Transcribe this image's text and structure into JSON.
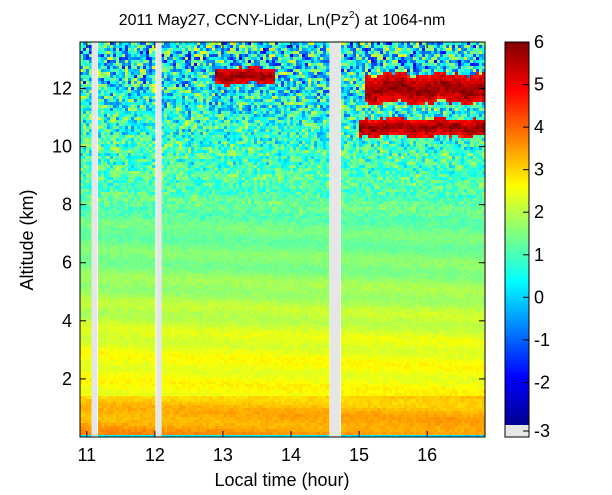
{
  "chart_data": {
    "type": "heatmap",
    "title_prefix": "2011 May27, CCNY-Lidar, Ln(Pz",
    "title_superscript": "2",
    "title_suffix": ") at 1064-nm",
    "xlabel": "Local time (hour)",
    "ylabel": "Altitude (km)",
    "xlim": [
      10.9,
      16.85
    ],
    "ylim": [
      0,
      13.6
    ],
    "x_ticks": [
      11,
      12,
      13,
      14,
      15,
      16
    ],
    "y_ticks": [
      2,
      4,
      6,
      8,
      10,
      12
    ],
    "colorbar": {
      "colormap": "jet",
      "range": [
        -3,
        6
      ],
      "ticks": [
        -3,
        -2,
        -1,
        0,
        1,
        2,
        3,
        4,
        5,
        6
      ]
    },
    "data_gaps_hours": [
      [
        11.07,
        11.15
      ],
      [
        12.02,
        12.1
      ],
      [
        14.57,
        14.72
      ]
    ],
    "cloud_layers": [
      {
        "t_start": 12.9,
        "t_end": 13.75,
        "alt_low_km": 12.1,
        "alt_high_km": 12.75
      },
      {
        "t_start": 15.1,
        "t_end": 16.85,
        "alt_low_km": 11.4,
        "alt_high_km": 12.6
      },
      {
        "t_start": 15.0,
        "t_end": 16.85,
        "alt_low_km": 10.3,
        "alt_high_km": 11.0
      }
    ],
    "aerosol_layer_top_km": 1.4,
    "colors": {
      "gap": "#e6e6e6",
      "background_axes": "#ffffff"
    }
  }
}
